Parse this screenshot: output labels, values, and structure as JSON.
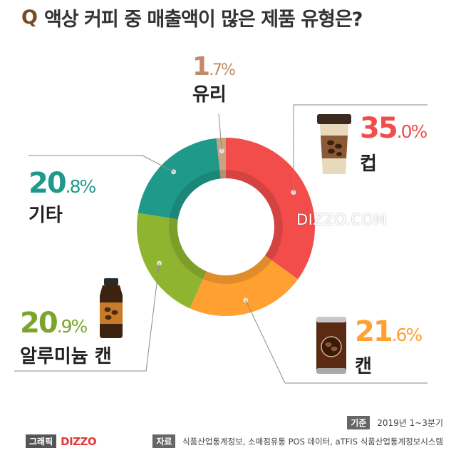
{
  "title": {
    "q": "Q",
    "text": "액상 커피 중 매출액이 많은 제품 유형은?"
  },
  "watermark": "DIZZO.COM",
  "footer": {
    "basis_tag": "기준",
    "basis_text": "2019년 1~3분기",
    "source_tag": "자료",
    "source_text": "식품산업통계정보, 소매점유통 POS 데이터, aTFIS 식품산업통계정보시스템",
    "brand_tag": "그래픽",
    "brand_logo": "DIZZO"
  },
  "colors": {
    "cup": "#f24d4a",
    "can": "#ffa030",
    "aluminum": "#8fb530",
    "other": "#1f9a8a",
    "glass": "#c9a382"
  },
  "chart_data": {
    "type": "pie",
    "style": "donut",
    "start": "12 o'clock, clockwise",
    "slices": [
      {
        "label": "컵",
        "value": 35.0,
        "display_int": "35",
        "display_dec": ".0%",
        "color": "#f24d4a",
        "icon": "coffee-cup-icon"
      },
      {
        "label": "캔",
        "value": 21.6,
        "display_int": "21",
        "display_dec": ".6%",
        "color": "#ffa030",
        "icon": "coffee-can-icon"
      },
      {
        "label": "알루미늄 캔",
        "value": 20.9,
        "display_int": "20",
        "display_dec": ".9%",
        "color": "#8fb530",
        "icon": "aluminum-bottle-icon"
      },
      {
        "label": "기타",
        "value": 20.8,
        "display_int": "20",
        "display_dec": ".8%",
        "color": "#1f9a8a",
        "icon": ""
      },
      {
        "label": "유리",
        "value": 1.7,
        "display_int": "1",
        "display_dec": ".7%",
        "color": "#c9a382",
        "icon": ""
      }
    ]
  }
}
